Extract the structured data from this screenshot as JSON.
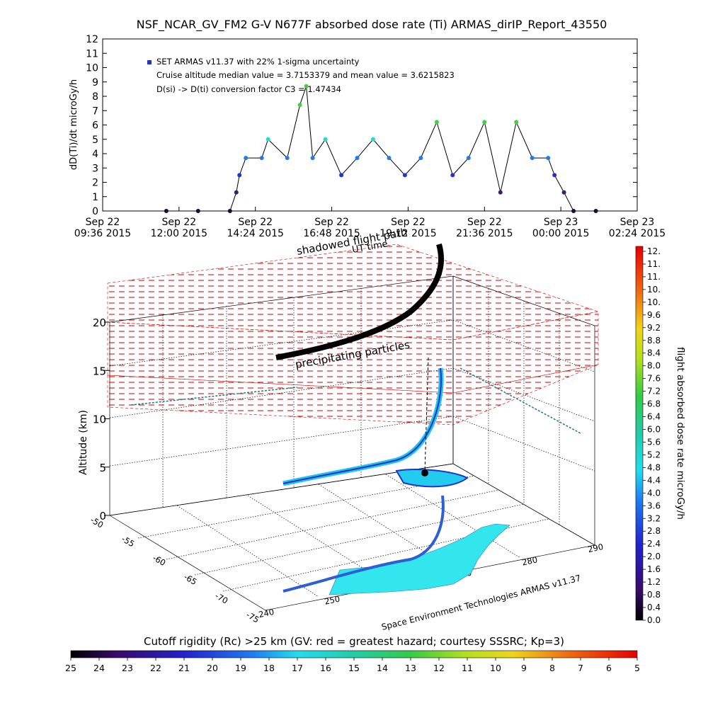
{
  "title": "NSF_NCAR_GV_FM2 G-V     N677F  absorbed dose rate (Ti) ARMAS_dirIP_Report_43550",
  "top_chart": {
    "ylabel": "dD(Ti)/dt microGy/h",
    "legend_series": "SET ARMAS v11.37 with 22% 1-sigma uncertainty",
    "note_line1": "Cruise altitude median value = 3.7153379 and mean value = 3.6215823",
    "note_line2": "D(si) -> D(ti) conversion factor C3 = 1.47434",
    "yticks": [
      "0",
      "1",
      "2",
      "3",
      "4",
      "5",
      "6",
      "7",
      "8",
      "9",
      "10",
      "11",
      "12"
    ],
    "xticks": [
      {
        "top": "Sep 22",
        "bottom": "09:36 2015"
      },
      {
        "top": "Sep 22",
        "bottom": "12:00 2015"
      },
      {
        "top": "Sep 22",
        "bottom": "14:24 2015"
      },
      {
        "top": "Sep 22",
        "bottom": "16:48 2015"
      },
      {
        "top": "Sep 22",
        "bottom": "19:12 2015"
      },
      {
        "top": "Sep 22",
        "bottom": "21:36 2015"
      },
      {
        "top": "Sep 23",
        "bottom": "00:00 2015"
      },
      {
        "top": "Sep 23",
        "bottom": "02:24 2015"
      }
    ]
  },
  "chart_data": [
    {
      "type": "line",
      "title": "NSF_NCAR_GV_FM2 G-V     N677F  absorbed dose rate (Ti) ARMAS_dirIP_Report_43550",
      "xlabel": "",
      "ylabel": "dD(Ti)/dt microGy/h",
      "x_units": "hours from Sep 22 2015 09:36",
      "xlim": [
        0,
        16.8
      ],
      "ylim": [
        0,
        12
      ],
      "grid": false,
      "legend_position": "top-left",
      "series": [
        {
          "name": "SET ARMAS v11.37 with 22% 1-sigma uncertainty",
          "x": [
            2.0,
            3.0,
            4.0,
            4.2,
            4.3,
            4.5,
            5.0,
            5.2,
            5.8,
            6.2,
            6.4,
            6.6,
            7.0,
            7.5,
            8.0,
            8.5,
            9.0,
            9.5,
            10.0,
            10.5,
            11.0,
            11.5,
            12.0,
            12.5,
            13.0,
            13.5,
            14.0,
            14.2,
            14.5,
            14.8,
            15.5
          ],
          "y": [
            0,
            0,
            0,
            1.3,
            2.5,
            3.7,
            3.7,
            5.0,
            3.7,
            7.4,
            8.7,
            3.7,
            5.0,
            2.5,
            3.7,
            5.0,
            3.7,
            2.5,
            3.7,
            6.2,
            2.5,
            3.7,
            6.2,
            1.3,
            6.2,
            3.7,
            3.7,
            2.5,
            1.3,
            0,
            0
          ]
        }
      ]
    },
    {
      "type": "scatter",
      "xlabel": "",
      "ylabel": "Altitude (km)",
      "z_ticks": [
        "0",
        "5",
        "10",
        "15",
        "20"
      ],
      "lat_ticks": [
        "-50",
        "-55",
        "-60",
        "-65",
        "-70",
        "-75"
      ],
      "lon_ticks": [
        "240",
        "250",
        "260",
        "270",
        "280",
        "290"
      ],
      "annotations": [
        "shadowed flight path",
        "UT time",
        "precipitating particles",
        "Space Environment Technologies ARMAS v11.37"
      ],
      "note": "3D flight path colored by absorbed dose rate; red dashed grids mark cutoff rigidity surface"
    }
  ],
  "colorbar_right": {
    "label": "flight absorbed dose rate microGy/h",
    "ticks": [
      "12.",
      "11.",
      "11.",
      "10.",
      "10.",
      "9.6",
      "9.2",
      "8.8",
      "8.4",
      "8.0",
      "7.6",
      "7.2",
      "6.8",
      "6.4",
      "6.0",
      "5.6",
      "5.2",
      "4.8",
      "4.4",
      "4.0",
      "3.6",
      "3.2",
      "2.8",
      "2.4",
      "2.0",
      "1.6",
      "1.2",
      "0.8",
      "0.4",
      "0.0"
    ]
  },
  "colorbar_bottom": {
    "label": "Cutoff rigidity (Rc) >25 km (GV: red = greatest hazard; courtesy SSSRC; Kp=3)",
    "ticks": [
      "25",
      "24",
      "23",
      "22",
      "21",
      "20",
      "19",
      "18",
      "17",
      "16",
      "15",
      "14",
      "13",
      "12",
      "11",
      "10",
      "9",
      "8",
      "7",
      "6",
      "5"
    ]
  },
  "scene_labels": {
    "shadowed": "shadowed flight path",
    "ut": "UT time",
    "precip": "precipitating particles",
    "credit": "Space Environment Technologies ARMAS v11.37",
    "altitude": "Altitude (km)"
  },
  "colors": {
    "hazard_grid": "#cc0000",
    "low_dose": "#3344cc",
    "mid_dose": "#22ccee",
    "high_dose": "#33cc55"
  }
}
